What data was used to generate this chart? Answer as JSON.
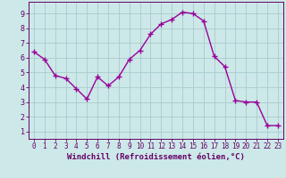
{
  "x": [
    0,
    1,
    2,
    3,
    4,
    5,
    6,
    7,
    8,
    9,
    10,
    11,
    12,
    13,
    14,
    15,
    16,
    17,
    18,
    19,
    20,
    21,
    22,
    23
  ],
  "y": [
    6.4,
    5.9,
    4.8,
    4.6,
    3.9,
    3.2,
    4.7,
    4.1,
    4.7,
    5.9,
    6.5,
    7.6,
    8.3,
    8.6,
    9.1,
    9.0,
    8.5,
    6.1,
    5.4,
    3.1,
    3.0,
    3.0,
    1.4,
    1.4
  ],
  "line_color": "#990099",
  "marker": "+",
  "marker_size": 4,
  "marker_linewidth": 1.0,
  "bg_color": "#cce8e8",
  "grid_color": "#aacccc",
  "xlabel": "Windchill (Refroidissement éolien,°C)",
  "xlabel_fontsize": 6.5,
  "tick_fontsize": 6.0,
  "xtick_fontsize": 5.5,
  "ylim": [
    0.5,
    9.8
  ],
  "xlim": [
    -0.5,
    23.5
  ],
  "yticks": [
    1,
    2,
    3,
    4,
    5,
    6,
    7,
    8,
    9
  ],
  "xticks": [
    0,
    1,
    2,
    3,
    4,
    5,
    6,
    7,
    8,
    9,
    10,
    11,
    12,
    13,
    14,
    15,
    16,
    17,
    18,
    19,
    20,
    21,
    22,
    23
  ],
  "text_color": "#660066",
  "spine_color": "#660066",
  "linewidth": 1.0
}
